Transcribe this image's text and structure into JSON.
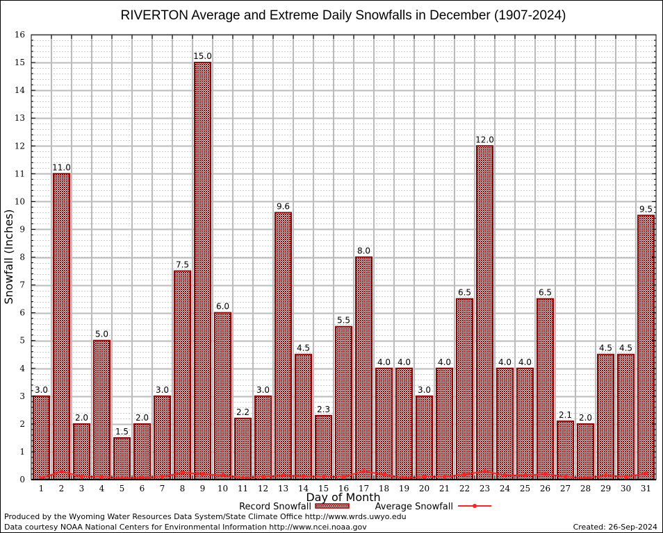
{
  "chart_data": {
    "type": "bar",
    "title": "RIVERTON Average and Extreme Daily Snowfalls in December (1907-2024)",
    "xlabel": "Day of Month",
    "ylabel": "Snowfall (Inches)",
    "ylim": [
      0,
      16
    ],
    "yticks": [
      0,
      1,
      2,
      3,
      4,
      5,
      6,
      7,
      8,
      9,
      10,
      11,
      12,
      13,
      14,
      15,
      16
    ],
    "categories": [
      "1",
      "2",
      "3",
      "4",
      "5",
      "6",
      "7",
      "8",
      "9",
      "10",
      "11",
      "12",
      "13",
      "14",
      "15",
      "16",
      "17",
      "18",
      "19",
      "20",
      "21",
      "22",
      "23",
      "24",
      "25",
      "26",
      "27",
      "28",
      "29",
      "30",
      "31"
    ],
    "grid": true,
    "legend_position": "bottom-center",
    "series": [
      {
        "name": "Record Snowfall",
        "type": "bar",
        "color": "#990000",
        "values": [
          3.0,
          11.0,
          2.0,
          5.0,
          1.5,
          2.0,
          3.0,
          7.5,
          15.0,
          6.0,
          2.2,
          3.0,
          9.6,
          4.5,
          2.3,
          5.5,
          8.0,
          4.0,
          4.0,
          3.0,
          4.0,
          6.5,
          12.0,
          4.0,
          4.0,
          6.5,
          2.1,
          2.0,
          4.5,
          4.5,
          9.5
        ],
        "labels": [
          "3.0",
          "11.0",
          "2.0",
          "5.0",
          "1.5",
          "2.0",
          "3.0",
          "7.5",
          "15.0",
          "6.0",
          "2.2",
          "3.0",
          "9.6",
          "4.5",
          "2.3",
          "5.5",
          "8.0",
          "4.0",
          "4.0",
          "3.0",
          "4.0",
          "6.5",
          "12.0",
          "4.0",
          "4.0",
          "6.5",
          "2.1",
          "2.0",
          "4.5",
          "4.5",
          "9.5"
        ]
      },
      {
        "name": "Average Snowfall",
        "type": "line",
        "color": "#ff2222",
        "values": [
          0.05,
          0.3,
          0.1,
          0.1,
          0.05,
          0.07,
          0.1,
          0.25,
          0.2,
          0.15,
          0.07,
          0.1,
          0.15,
          0.12,
          0.1,
          0.1,
          0.3,
          0.18,
          0.05,
          0.1,
          0.1,
          0.18,
          0.3,
          0.15,
          0.15,
          0.2,
          0.1,
          0.05,
          0.15,
          0.1,
          0.22
        ]
      }
    ]
  },
  "footer": {
    "line1": "Produced by the Wyoming Water Resources Data System/State Climate Office http://www.wrds.uwyo.edu",
    "line2": "Data courtesy NOAA National Centers for Environmental Information http://www.ncei.noaa.gov",
    "created": "Created: 26-Sep-2024"
  }
}
